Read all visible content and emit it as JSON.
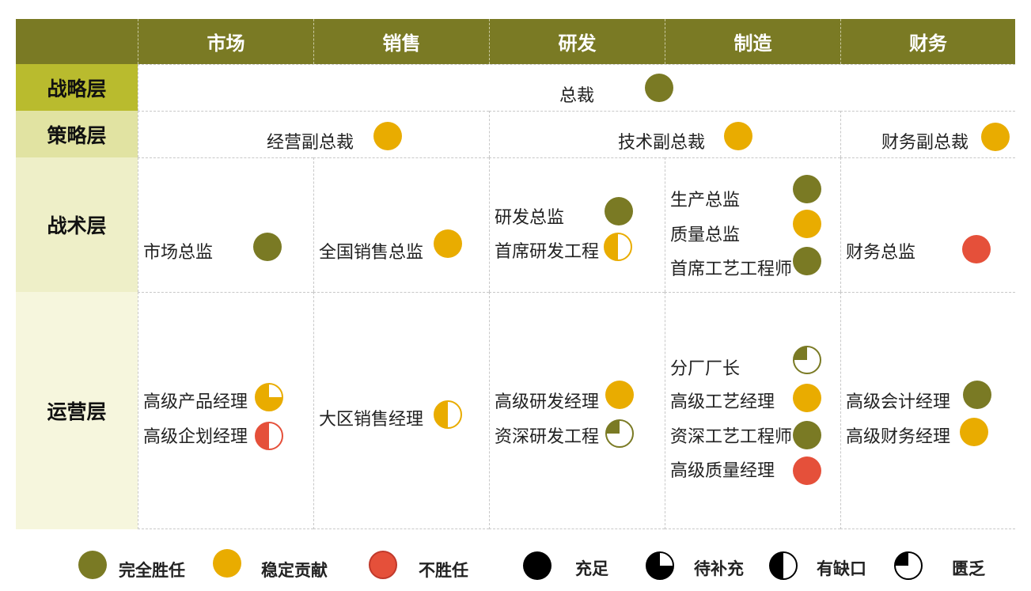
{
  "columns": [
    "市场",
    "销售",
    "研发",
    "制造",
    "财务"
  ],
  "levels": [
    "战略层",
    "策略层",
    "战术层",
    "运营层"
  ],
  "strategic": {
    "role": "总裁",
    "status": "完全胜任",
    "fill": "full"
  },
  "tactical_vp": [
    {
      "role": "经营副总裁",
      "status": "稳定贡献",
      "fill": "full"
    },
    {
      "role": "技术副总裁",
      "status": "稳定贡献",
      "fill": "full"
    },
    {
      "role": "财务副总裁",
      "status": "稳定贡献",
      "fill": "full"
    }
  ],
  "tactics": {
    "market": [
      {
        "role": "市场总监",
        "status": "完全胜任",
        "fill": "full"
      }
    ],
    "sales": [
      {
        "role": "全国销售总监",
        "status": "稳定贡献",
        "fill": "full"
      }
    ],
    "rd": [
      {
        "role": "研发总监",
        "status": "完全胜任",
        "fill": "full"
      },
      {
        "role": "首席研发工程",
        "status": "稳定贡献",
        "fill": "有缺口"
      }
    ],
    "mfg": [
      {
        "role": "生产总监",
        "status": "完全胜任",
        "fill": "full"
      },
      {
        "role": "质量总监",
        "status": "稳定贡献",
        "fill": "full"
      },
      {
        "role": "首席工艺工程师",
        "status": "完全胜任",
        "fill": "full"
      }
    ],
    "finance": [
      {
        "role": "财务总监",
        "status": "不胜任",
        "fill": "full"
      }
    ]
  },
  "operations": {
    "market": [
      {
        "role": "高级产品经理",
        "status": "稳定贡献",
        "fill": "待补充"
      },
      {
        "role": "高级企划经理",
        "status": "不胜任",
        "fill": "有缺口"
      }
    ],
    "sales": [
      {
        "role": "大区销售经理",
        "status": "稳定贡献",
        "fill": "有缺口"
      }
    ],
    "rd": [
      {
        "role": "高级研发经理",
        "status": "稳定贡献",
        "fill": "full"
      },
      {
        "role": "资深研发工程",
        "status": "完全胜任",
        "fill": "匮乏"
      }
    ],
    "mfg": [
      {
        "role": "分厂厂长",
        "status": "完全胜任",
        "fill": "匮乏"
      },
      {
        "role": "高级工艺经理",
        "status": "稳定贡献",
        "fill": "full"
      },
      {
        "role": "资深工艺工程师",
        "status": "完全胜任",
        "fill": "full"
      },
      {
        "role": "高级质量经理",
        "status": "不胜任",
        "fill": "full"
      }
    ],
    "finance": [
      {
        "role": "高级会计经理",
        "status": "完全胜任",
        "fill": "full"
      },
      {
        "role": "高级财务经理",
        "status": "稳定贡献",
        "fill": "full"
      }
    ]
  },
  "legend": {
    "competence": [
      "完全胜任",
      "稳定贡献",
      "不胜任"
    ],
    "fill": [
      "充足",
      "待补充",
      "有缺口",
      "匮乏"
    ]
  },
  "colors": {
    "header": "#7a7a24",
    "level1": "#b9bb2e",
    "level2": "#e1e3a2",
    "level3": "#eeefc8",
    "level4": "#f6f6dd",
    "olive": "#7a7a24",
    "yellow": "#e9ac00",
    "red": "#e5503a"
  }
}
